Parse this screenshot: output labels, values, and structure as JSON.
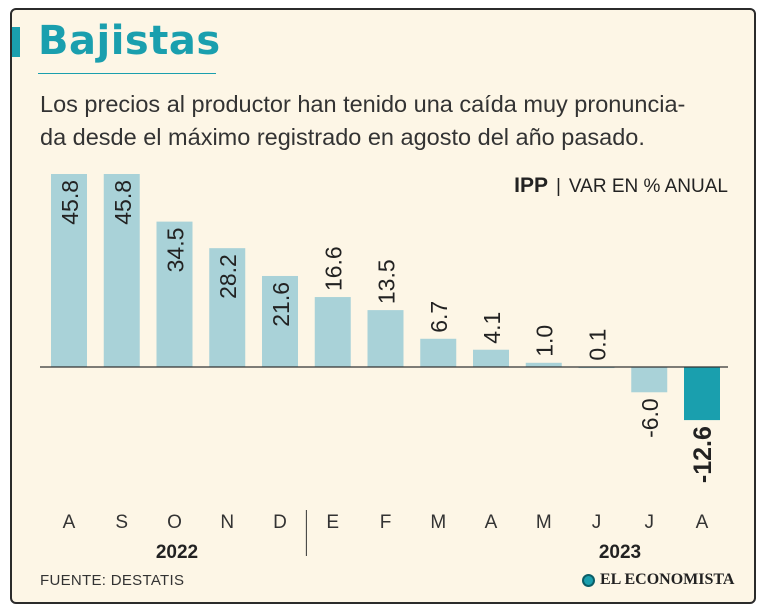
{
  "header": {
    "title": "Bajistas",
    "subtitle_line1": "Los precios al productor han tenido una caída muy pronuncia-",
    "subtitle_line2": "da desde el máximo registrado en agosto del año pasado."
  },
  "unit": {
    "series_name": "IPP",
    "separator": "|",
    "description": "VAR EN % ANUAL"
  },
  "footer": {
    "source": "FUENTE: DESTATIS",
    "logo_text": "EL ECONOMISTA"
  },
  "colors": {
    "bar": "#a9d2d8",
    "highlight": "#1a9fae",
    "text": "#222222",
    "accent": "#1a9fae"
  },
  "chart_data": {
    "type": "bar",
    "title": "IPP",
    "ylabel": "VAR EN % ANUAL",
    "categories": [
      "A",
      "S",
      "O",
      "N",
      "D",
      "E",
      "F",
      "M",
      "A",
      "M",
      "J",
      "J",
      "A"
    ],
    "values": [
      45.8,
      45.8,
      34.5,
      28.2,
      21.6,
      16.6,
      13.5,
      6.7,
      4.1,
      1.0,
      0.1,
      -6.0,
      -12.6
    ],
    "value_labels": [
      "45.8",
      "45.8",
      "34.5",
      "28.2",
      "21.6",
      "16.6",
      "13.5",
      "6.7",
      "4.1",
      "1.0",
      "0.1",
      "-6.0",
      "-12.6"
    ],
    "highlight_index": 12,
    "years": [
      {
        "label": "2022",
        "start": 0,
        "end": 4
      },
      {
        "label": "2023",
        "start": 5,
        "end": 12
      }
    ],
    "ylim": [
      -12.6,
      45.8
    ]
  }
}
